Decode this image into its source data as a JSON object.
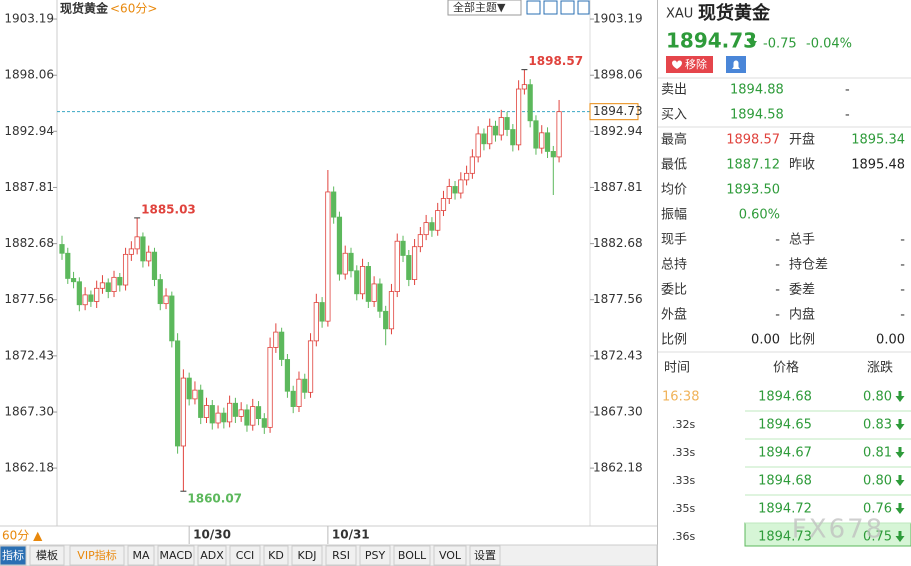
{
  "chart_data": {
    "type": "candlestick",
    "categories": [
      null,
      null,
      null,
      null,
      null,
      null,
      null,
      null,
      null,
      null,
      null,
      null,
      null,
      null,
      null,
      null,
      null,
      null,
      null,
      null,
      null,
      null,
      "10/30",
      null,
      null,
      null,
      null,
      null,
      null,
      null,
      null,
      null,
      null,
      null,
      null,
      null,
      null,
      null,
      null,
      null,
      null,
      null,
      null,
      null,
      null,
      null,
      "10/31",
      null,
      null,
      null,
      null,
      null,
      null,
      null,
      null,
      null,
      null,
      null,
      null,
      null,
      null,
      null,
      null,
      null,
      null,
      null,
      null,
      null,
      null,
      null,
      null,
      null,
      null,
      null,
      null,
      null,
      null,
      null,
      null,
      null,
      null,
      null,
      null,
      null,
      null,
      null,
      null
    ],
    "open": [
      1882.6,
      1881.8,
      1879.5,
      1879.2,
      1877.1,
      1878.0,
      1877.4,
      1878.6,
      1879.1,
      1878.3,
      1879.6,
      1878.9,
      1881.7,
      1882.2,
      1883.3,
      1881.1,
      1881.9,
      1879.4,
      1877.2,
      1877.9,
      1873.8,
      1864.2,
      1870.4,
      1868.5,
      1869.3,
      1866.8,
      1867.9,
      1866.3,
      1867.2,
      1866.4,
      1868.1,
      1866.9,
      1867.5,
      1866.1,
      1867.8,
      1866.7,
      1865.9,
      1873.2,
      1874.6,
      1872.1,
      1869.2,
      1867.8,
      1870.3,
      1869.1,
      1873.8,
      1877.3,
      1875.6,
      1887.4,
      1885.1,
      1879.9,
      1881.8,
      1880.2,
      1878.1,
      1880.6,
      1877.4,
      1879.0,
      1876.5,
      1874.9,
      1878.3,
      1882.9,
      1881.6,
      1879.4,
      1882.4,
      1883.5,
      1884.6,
      1883.9,
      1885.7,
      1886.8,
      1887.9,
      1887.3,
      1888.5,
      1889.1,
      1890.6,
      1892.7,
      1891.8,
      1893.4,
      1892.6,
      1894.2,
      1893.1,
      1891.7,
      1896.8,
      1897.2,
      1893.9,
      1891.4,
      1892.8,
      1891.1,
      1890.6
    ],
    "high": [
      1883.4,
      1882.3,
      1880.1,
      1879.6,
      1878.7,
      1878.4,
      1879.3,
      1879.8,
      1879.5,
      1880.2,
      1880.0,
      1882.3,
      1882.9,
      1885.03,
      1883.7,
      1882.5,
      1882.3,
      1879.9,
      1878.6,
      1878.3,
      1874.5,
      1871.2,
      1870.9,
      1870.1,
      1869.8,
      1868.6,
      1868.4,
      1867.9,
      1867.7,
      1868.8,
      1868.6,
      1868.2,
      1868.0,
      1868.5,
      1868.3,
      1867.2,
      1874.1,
      1875.4,
      1875.0,
      1872.6,
      1869.7,
      1871.0,
      1870.8,
      1874.5,
      1878.1,
      1877.8,
      1889.4,
      1887.9,
      1885.6,
      1882.5,
      1882.3,
      1880.7,
      1881.3,
      1881.0,
      1879.7,
      1879.5,
      1877.0,
      1879.0,
      1883.6,
      1883.4,
      1882.1,
      1883.1,
      1884.2,
      1885.3,
      1885.1,
      1886.4,
      1887.5,
      1888.6,
      1888.4,
      1889.2,
      1889.8,
      1891.3,
      1893.4,
      1893.2,
      1894.1,
      1893.9,
      1894.9,
      1894.7,
      1893.6,
      1897.6,
      1898.57,
      1897.7,
      1894.4,
      1893.5,
      1893.3,
      1891.6,
      1895.8
    ],
    "low": [
      1881.2,
      1879.0,
      1878.6,
      1876.5,
      1876.6,
      1876.9,
      1876.8,
      1878.1,
      1877.7,
      1877.8,
      1878.3,
      1878.4,
      1881.1,
      1881.7,
      1880.5,
      1880.6,
      1878.8,
      1876.6,
      1876.7,
      1873.2,
      1863.5,
      1860.07,
      1867.9,
      1868.0,
      1866.2,
      1866.3,
      1865.7,
      1865.8,
      1865.8,
      1865.9,
      1866.3,
      1866.4,
      1865.5,
      1865.6,
      1866.1,
      1865.3,
      1865.4,
      1872.7,
      1871.5,
      1868.6,
      1867.2,
      1867.3,
      1868.5,
      1868.6,
      1873.3,
      1875.0,
      1875.1,
      1884.5,
      1879.3,
      1879.4,
      1879.6,
      1877.5,
      1877.6,
      1876.8,
      1876.9,
      1875.9,
      1873.4,
      1874.4,
      1877.8,
      1881.0,
      1878.8,
      1878.9,
      1881.9,
      1883.0,
      1883.3,
      1883.4,
      1885.2,
      1886.3,
      1886.7,
      1886.8,
      1888.0,
      1888.6,
      1890.1,
      1891.2,
      1891.3,
      1892.0,
      1892.1,
      1892.5,
      1891.1,
      1891.2,
      1896.3,
      1893.3,
      1890.8,
      1890.9,
      1890.5,
      1887.12,
      1890.1
    ],
    "close": [
      1881.8,
      1879.5,
      1879.2,
      1877.1,
      1878.0,
      1877.4,
      1878.6,
      1879.1,
      1878.3,
      1879.6,
      1878.9,
      1881.7,
      1882.2,
      1883.3,
      1881.1,
      1881.9,
      1879.4,
      1877.2,
      1877.9,
      1873.8,
      1864.2,
      1870.4,
      1868.5,
      1869.3,
      1866.8,
      1867.9,
      1866.3,
      1867.2,
      1866.4,
      1868.1,
      1866.9,
      1867.5,
      1866.1,
      1867.8,
      1866.7,
      1865.9,
      1873.2,
      1874.6,
      1872.1,
      1869.2,
      1867.8,
      1870.3,
      1869.1,
      1873.8,
      1877.3,
      1875.6,
      1887.4,
      1885.1,
      1879.9,
      1881.8,
      1880.2,
      1878.1,
      1880.6,
      1877.4,
      1879.0,
      1876.5,
      1874.9,
      1878.3,
      1882.9,
      1881.6,
      1879.4,
      1882.4,
      1883.5,
      1884.6,
      1883.9,
      1885.7,
      1886.8,
      1887.9,
      1887.3,
      1888.5,
      1889.1,
      1890.6,
      1892.7,
      1891.8,
      1893.4,
      1892.6,
      1894.2,
      1893.1,
      1891.7,
      1896.8,
      1897.2,
      1893.9,
      1891.4,
      1892.8,
      1891.1,
      1890.6,
      1894.73
    ],
    "up_color": "#e0433d",
    "down_color": "#5cb85c",
    "ylim": [
      1857.44,
      1904.93
    ],
    "yticks": [
      1903.19,
      1898.06,
      1892.94,
      1887.81,
      1882.68,
      1877.56,
      1872.43,
      {
        "value": 1867.3,
        "label": "1867.30"
      },
      1862.18
    ]
  },
  "toolbar": {
    "title": "现货黄金",
    "period": "<60分>",
    "theme": "全部主题▼",
    "period_button": "60分 ▲"
  },
  "tabs": [
    "指标",
    "模板",
    "VIP指标",
    "MA",
    "MACD",
    "ADX",
    "CCI",
    "KD",
    "KDJ",
    "RSI",
    "PSY",
    "BOLL",
    "VOL",
    "设置"
  ],
  "quote": {
    "symbol": "XAU",
    "name": "现货黄金",
    "price": "1894.73",
    "change": "-0.75",
    "change_pct": "-0.04%",
    "remove_button": "移除",
    "bid_ask": [
      [
        "卖出",
        "1894.88",
        "-"
      ],
      [
        "买入",
        "1894.58",
        "-"
      ]
    ],
    "stats": [
      [
        "最高",
        "1898.57",
        "开盘",
        "1895.34"
      ],
      [
        "最低",
        "1887.12",
        "昨收",
        "1895.48"
      ],
      [
        "均价",
        "1893.50"
      ],
      [
        "振幅",
        "0.60%"
      ],
      [
        "现手",
        "-",
        "总手",
        "-"
      ],
      [
        "总持",
        "-",
        "持仓差",
        "-"
      ],
      [
        "委比",
        "-",
        "委差",
        "-"
      ],
      [
        "外盘",
        "-",
        "内盘",
        "-"
      ],
      [
        "比例",
        "0.00",
        "比例",
        "0.00"
      ]
    ],
    "ticks_header": [
      "时间",
      "价格",
      "涨跌"
    ],
    "ticks": [
      [
        "16:38",
        "1894.68",
        "0.80"
      ],
      [
        ".32s",
        "1894.65",
        "0.83"
      ],
      [
        ".33s",
        "1894.67",
        "0.81"
      ],
      [
        ".33s",
        "1894.68",
        "0.80"
      ],
      [
        ".35s",
        "1894.72",
        "0.76"
      ],
      [
        ".36s",
        "1894.73",
        "0.75"
      ]
    ]
  },
  "watermark": "FX678"
}
